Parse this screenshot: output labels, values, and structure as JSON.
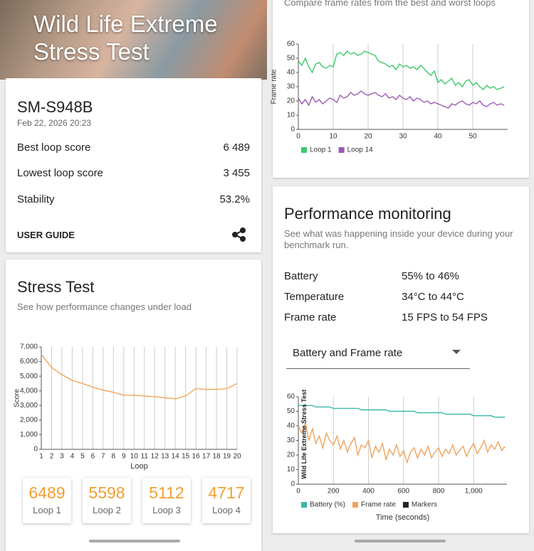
{
  "header": {
    "title": "Wild Life Extreme Stress Test"
  },
  "summary": {
    "device": "SM-S948B",
    "date": "Feb 22, 2026 20:23",
    "rows": [
      {
        "label": "Best loop score",
        "value": "6 489"
      },
      {
        "label": "Lowest loop score",
        "value": "3 455"
      },
      {
        "label": "Stability",
        "value": "53.2%"
      }
    ],
    "user_guide": "USER GUIDE"
  },
  "stress_test": {
    "title": "Stress Test",
    "subtitle": "See how performance changes under load",
    "chart": {
      "type": "line",
      "categories": [
        1,
        2,
        3,
        4,
        5,
        6,
        7,
        8,
        9,
        10,
        11,
        12,
        13,
        14,
        15,
        16,
        17,
        18,
        19,
        20
      ],
      "series": [
        {
          "name": "Score",
          "color": "#f0a55a",
          "values": [
            6489,
            5598,
            5112,
            4717,
            4500,
            4250,
            4050,
            3900,
            3700,
            3700,
            3650,
            3600,
            3520,
            3455,
            3650,
            4150,
            4100,
            4100,
            4150,
            4500
          ]
        }
      ],
      "ylim": [
        0,
        7000
      ],
      "yticks": [
        0,
        {
          "value": 1000,
          "label": "1,000"
        },
        {
          "value": 2000,
          "label": "2,000"
        },
        {
          "value": 3000,
          "label": "3,000"
        },
        {
          "value": 4000,
          "label": "4,000"
        },
        {
          "value": 5000,
          "label": "5,000"
        },
        {
          "value": 6000,
          "label": "6,000"
        },
        {
          "value": 7000,
          "label": "7,000"
        }
      ],
      "xlabel": "Loop",
      "ylabel": "Score",
      "grid": true,
      "legend": false
    },
    "loops": [
      {
        "score": 6489,
        "label": "Loop 1"
      },
      {
        "score": 5598,
        "label": "Loop 2"
      },
      {
        "score": 5112,
        "label": "Loop 3"
      },
      {
        "score": 4717,
        "label": "Loop 4"
      }
    ]
  },
  "frame_rates": {
    "subtitle": "Compare frame rates from the best and worst loops",
    "chart": {
      "type": "line",
      "x": [
        0,
        1,
        2,
        3,
        4,
        5,
        6,
        7,
        8,
        9,
        10,
        11,
        12,
        13,
        14,
        15,
        16,
        17,
        18,
        19,
        20,
        21,
        22,
        23,
        24,
        25,
        26,
        27,
        28,
        29,
        30,
        31,
        32,
        33,
        34,
        35,
        36,
        37,
        38,
        39,
        40,
        41,
        42,
        43,
        44,
        45,
        46,
        47,
        48,
        49,
        50,
        51,
        52,
        53,
        54,
        55,
        56,
        57,
        58,
        59
      ],
      "series": [
        {
          "name": "Loop 1",
          "color": "#3cc86a",
          "values": [
            48,
            45,
            50,
            44,
            40,
            46,
            47,
            44,
            43,
            45,
            44,
            53,
            54,
            52,
            55,
            53,
            54,
            52,
            53,
            55,
            54,
            53,
            52,
            48,
            47,
            46,
            44,
            45,
            42,
            46,
            44,
            45,
            43,
            44,
            42,
            45,
            43,
            40,
            38,
            41,
            33,
            35,
            32,
            34,
            36,
            31,
            33,
            30,
            34,
            35,
            31,
            33,
            30,
            28,
            31,
            29,
            30,
            28,
            29,
            30
          ]
        },
        {
          "name": "Loop 14",
          "color": "#9b59b6",
          "values": [
            22,
            18,
            21,
            17,
            23,
            19,
            21,
            18,
            20,
            22,
            21,
            19,
            24,
            22,
            23,
            26,
            24,
            25,
            27,
            25,
            24,
            25,
            26,
            24,
            23,
            25,
            22,
            23,
            21,
            24,
            22,
            21,
            23,
            20,
            22,
            21,
            19,
            20,
            18,
            19,
            18,
            17,
            16,
            15,
            18,
            17,
            19,
            20,
            18,
            17,
            19,
            18,
            20,
            17,
            16,
            18,
            19,
            17,
            18,
            17
          ]
        }
      ],
      "xlim": [
        0,
        60
      ],
      "xticks": [
        0,
        10,
        20,
        30,
        40,
        50
      ],
      "ylim": [
        0,
        60
      ],
      "yticks": [
        0,
        10,
        20,
        30,
        40,
        50,
        60
      ],
      "ylabel": "Frame rate",
      "grid": true,
      "legend": "bottom"
    }
  },
  "performance": {
    "title": "Performance monitoring",
    "subtitle": "See what was happening inside your device during your benchmark run.",
    "rows": [
      {
        "label": "Battery",
        "value": "55% to 46%"
      },
      {
        "label": "Temperature",
        "value": "34°C to 44°C"
      },
      {
        "label": "Frame rate",
        "value": "15 FPS to 54 FPS"
      }
    ],
    "dropdown": "Battery and Frame rate",
    "chart": {
      "type": "line",
      "x": [
        0,
        20,
        40,
        60,
        80,
        100,
        120,
        140,
        160,
        180,
        200,
        220,
        240,
        260,
        280,
        300,
        320,
        340,
        360,
        380,
        400,
        420,
        440,
        460,
        480,
        500,
        520,
        540,
        560,
        580,
        600,
        620,
        640,
        660,
        680,
        700,
        720,
        740,
        760,
        780,
        800,
        820,
        840,
        860,
        880,
        900,
        920,
        940,
        960,
        980,
        1000,
        1020,
        1040,
        1060,
        1080,
        1100,
        1120,
        1140,
        1160,
        1180
      ],
      "series": [
        {
          "name": "Battery (%)",
          "color": "#3bb8a8",
          "values": [
            54,
            54,
            54,
            54,
            54,
            53,
            53,
            53,
            53,
            53,
            52,
            52,
            52,
            52,
            52,
            52,
            52,
            52,
            51,
            51,
            51,
            51,
            51,
            51,
            51,
            51,
            50,
            50,
            50,
            50,
            50,
            50,
            50,
            50,
            49,
            49,
            49,
            49,
            49,
            49,
            49,
            49,
            48,
            48,
            48,
            48,
            48,
            48,
            48,
            48,
            47,
            47,
            47,
            47,
            47,
            47,
            46,
            46,
            46,
            46
          ]
        },
        {
          "name": "Frame rate",
          "color": "#f0a35e",
          "values": [
            40,
            35,
            42,
            30,
            38,
            28,
            33,
            25,
            35,
            30,
            27,
            33,
            24,
            30,
            22,
            28,
            32,
            20,
            27,
            25,
            30,
            18,
            26,
            22,
            28,
            17,
            24,
            20,
            27,
            19,
            23,
            15,
            22,
            25,
            18,
            24,
            20,
            26,
            18,
            22,
            25,
            19,
            24,
            21,
            27,
            20,
            23,
            26,
            19,
            24,
            28,
            21,
            25,
            30,
            22,
            27,
            24,
            29,
            23,
            26
          ]
        }
      ],
      "markers": {
        "name": "Markers",
        "color": "#222222",
        "items": [
          {
            "x": 35,
            "label": "Wild Life Extreme Stress Test"
          }
        ]
      },
      "xlim": [
        0,
        1190
      ],
      "xticks": [
        0,
        200,
        400,
        600,
        800,
        {
          "value": 1000,
          "label": "1,000"
        }
      ],
      "ylim": [
        0,
        60
      ],
      "yticks": [
        0,
        10,
        20,
        30,
        40,
        50,
        60
      ],
      "xlabel": "Time (seconds)",
      "grid": true,
      "legend": "bottom"
    }
  }
}
